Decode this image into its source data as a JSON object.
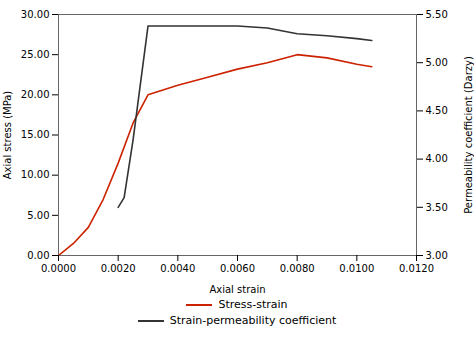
{
  "chart_data": {
    "type": "line",
    "xlabel": "Axial strain",
    "ylabel": "Axial stress (MPa)",
    "y2label": "Permeability coefficient (Darzy)",
    "series": [
      {
        "name": "Stress-strain",
        "color": "#cc2200",
        "axis": "y",
        "x": [
          0.0,
          0.0005,
          0.001,
          0.0015,
          0.002,
          0.0025,
          0.003,
          0.004,
          0.005,
          0.006,
          0.007,
          0.008,
          0.009,
          0.01,
          0.0105
        ],
        "values": [
          0.0,
          1.5,
          3.5,
          7.0,
          11.5,
          16.5,
          20.0,
          21.2,
          22.2,
          23.2,
          24.0,
          25.0,
          24.6,
          23.8,
          23.5
        ]
      },
      {
        "name": "Strain-permeability coefficient",
        "color": "#333333",
        "axis": "y2",
        "x": [
          0.002,
          0.0022,
          0.0025,
          0.003,
          0.004,
          0.005,
          0.006,
          0.007,
          0.008,
          0.009,
          0.01,
          0.0105
        ],
        "values": [
          3.5,
          3.6,
          4.2,
          5.38,
          5.38,
          5.38,
          5.38,
          5.36,
          5.3,
          5.28,
          5.25,
          5.23
        ]
      }
    ],
    "xlim": [
      0.0,
      0.012
    ],
    "xticks": [
      {
        "value": 0.0,
        "label": "0.0000"
      },
      {
        "value": 0.002,
        "label": "0.0020"
      },
      {
        "value": 0.004,
        "label": "0.0040"
      },
      {
        "value": 0.006,
        "label": "0.0060"
      },
      {
        "value": 0.008,
        "label": "0.0080"
      },
      {
        "value": 0.01,
        "label": "0.0100"
      },
      {
        "value": 0.012,
        "label": "0.0120"
      }
    ],
    "ylim": [
      0.0,
      30.0
    ],
    "yticks": [
      {
        "value": 0.0,
        "label": "0.00"
      },
      {
        "value": 5.0,
        "label": "5.00"
      },
      {
        "value": 10.0,
        "label": "10.00"
      },
      {
        "value": 15.0,
        "label": "15.00"
      },
      {
        "value": 20.0,
        "label": "20.00"
      },
      {
        "value": 25.0,
        "label": "25.00"
      },
      {
        "value": 30.0,
        "label": "30.00"
      }
    ],
    "y2lim": [
      3.0,
      5.5
    ],
    "y2ticks": [
      {
        "value": 3.0,
        "label": "3.00"
      },
      {
        "value": 3.5,
        "label": "3.50"
      },
      {
        "value": 4.0,
        "label": "4.00"
      },
      {
        "value": 4.5,
        "label": "4.50"
      },
      {
        "value": 5.0,
        "label": "5.00"
      },
      {
        "value": 5.5,
        "label": "5.50"
      }
    ],
    "grid": false,
    "legend": "bottom"
  }
}
